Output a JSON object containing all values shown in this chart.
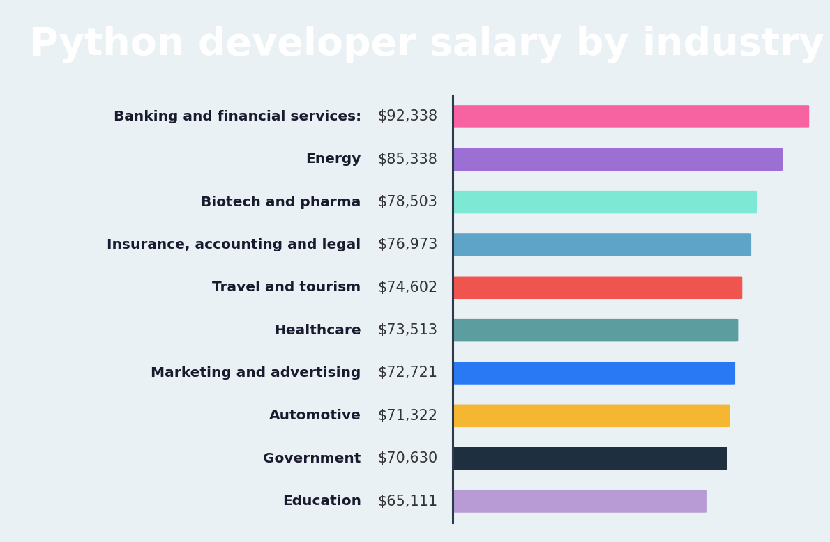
{
  "title": "Python developer salary by industry",
  "title_bg_color": "#2d4a5e",
  "title_text_color": "#ffffff",
  "bg_color": "#eaf1f5",
  "categories": [
    "Banking and financial services:",
    "Energy",
    "Biotech and pharma",
    "Insurance, accounting and legal",
    "Travel and tourism",
    "Healthcare",
    "Marketing and advertising",
    "Automotive",
    "Government",
    "Education"
  ],
  "values": [
    92338,
    85338,
    78503,
    76973,
    74602,
    73513,
    72721,
    71322,
    70630,
    65111
  ],
  "labels": [
    "$92,338",
    "$85,338",
    "$78,503",
    "$76,973",
    "$74,602",
    "$73,513",
    "$72,721",
    "$71,322",
    "$70,630",
    "$65,111"
  ],
  "bar_colors": [
    "#f763a0",
    "#9b6fd4",
    "#7de8d4",
    "#5da4c8",
    "#f0544f",
    "#5c9ea0",
    "#2979f5",
    "#f5b731",
    "#1e3040",
    "#b89ad4"
  ],
  "bar_height": 0.52,
  "value_label_fontsize": 15,
  "category_label_fontsize": 14.5,
  "divider_color": "#2d3a4a",
  "title_fontsize": 40
}
